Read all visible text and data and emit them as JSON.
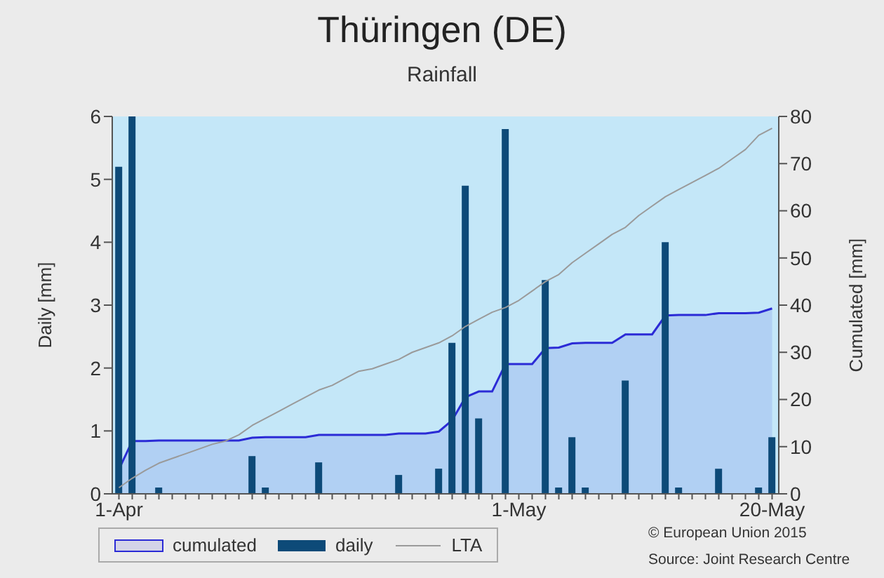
{
  "chart_data": {
    "type": "bar",
    "title": "Thüringen (DE)",
    "subtitle": "Rainfall",
    "ylabel": "Daily [mm]",
    "y2label": "Cumulated [mm]",
    "categories": [
      "1-Apr",
      null,
      null,
      null,
      null,
      null,
      null,
      null,
      null,
      null,
      null,
      null,
      null,
      null,
      null,
      null,
      null,
      null,
      null,
      null,
      null,
      null,
      null,
      null,
      null,
      null,
      null,
      null,
      null,
      null,
      "1-May",
      null,
      null,
      null,
      null,
      null,
      null,
      null,
      null,
      null,
      null,
      null,
      null,
      null,
      null,
      null,
      null,
      null,
      null,
      "20-May"
    ],
    "series": [
      {
        "name": "cumulated",
        "type": "area",
        "axis": "y2",
        "color": "#2b2bd6",
        "values": [
          5.2,
          11.2,
          11.2,
          11.3,
          11.3,
          11.3,
          11.3,
          11.3,
          11.3,
          11.3,
          11.9,
          12.0,
          12.0,
          12.0,
          12.0,
          12.5,
          12.5,
          12.5,
          12.5,
          12.5,
          12.5,
          12.8,
          12.8,
          12.8,
          13.2,
          15.6,
          20.5,
          21.7,
          21.7,
          27.5,
          27.5,
          27.5,
          30.9,
          31.0,
          31.9,
          32.0,
          32.0,
          32.0,
          33.8,
          33.8,
          33.8,
          37.8,
          37.9,
          37.9,
          37.9,
          38.3,
          38.3,
          38.3,
          38.4,
          39.3
        ]
      },
      {
        "name": "daily",
        "color": "#0d4a78",
        "values": [
          5.2,
          6.0,
          0,
          0.1,
          0,
          0,
          0,
          0,
          0,
          0,
          0.6,
          0.1,
          0,
          0,
          0,
          0.5,
          0,
          0,
          0,
          0,
          0,
          0.3,
          0,
          0,
          0.4,
          2.4,
          4.9,
          1.2,
          0,
          5.8,
          0,
          0,
          3.4,
          0.1,
          0.9,
          0.1,
          0,
          0,
          1.8,
          0,
          0,
          4.0,
          0.1,
          0,
          0,
          0.4,
          0,
          0,
          0.1,
          0.9
        ]
      },
      {
        "name": "LTA",
        "type": "line",
        "axis": "y2",
        "color": "#9a9a9a",
        "values": [
          1.3,
          3.3,
          5,
          6.5,
          7.5,
          8.5,
          9.5,
          10.5,
          11.2,
          12.5,
          14.5,
          16,
          17.5,
          19,
          20.5,
          22,
          23,
          24.5,
          26,
          26.5,
          27.5,
          28.5,
          30,
          31,
          32,
          33.5,
          35.5,
          37,
          38.5,
          39.5,
          41,
          43,
          45,
          46.5,
          49,
          51,
          53,
          55,
          56.5,
          59,
          61,
          63,
          64.5,
          66,
          67.5,
          69,
          71,
          73,
          76,
          77.5
        ]
      }
    ],
    "ylim": [
      0,
      6
    ],
    "yticks": [
      0,
      1,
      2,
      3,
      4,
      5,
      6
    ],
    "y2lim": [
      0,
      80
    ],
    "y2ticks": [
      0,
      10,
      20,
      30,
      40,
      50,
      60,
      70,
      80
    ],
    "grid": false,
    "legend": "bottom",
    "marker": "none",
    "annotations": [
      "© European Union 2015",
      "Source: Joint Research Centre"
    ]
  }
}
